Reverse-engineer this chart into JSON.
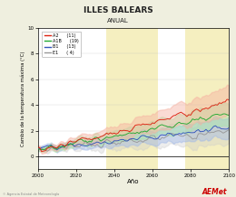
{
  "title": "ILLES BALEARS",
  "subtitle": "ANUAL",
  "xlabel": "Año",
  "ylabel": "Cambio de la temperatura máxima (°C)",
  "xlim": [
    2000,
    2100
  ],
  "ylim": [
    -1,
    10
  ],
  "yticks": [
    0,
    2,
    4,
    6,
    8,
    10
  ],
  "xticks": [
    2000,
    2020,
    2040,
    2060,
    2080,
    2100
  ],
  "bg_color": "#efefdf",
  "plot_bg": "#ffffff",
  "shade1_start": 2036,
  "shade1_end": 2063,
  "shade2_start": 2077,
  "shade2_end": 2100,
  "shade_color": "#f5efc0",
  "legend_labels": [
    "A2",
    "A1B",
    "B1",
    "E1"
  ],
  "legend_counts": [
    "(11)",
    "(19)",
    "(13)",
    "( 4)"
  ],
  "line_colors": [
    "#dd2211",
    "#22aa33",
    "#3355bb",
    "#999999"
  ],
  "band_alphas": [
    0.45,
    0.45,
    0.45,
    0.35
  ],
  "band_colors": [
    "#f5b0a0",
    "#a8e8a8",
    "#a0b8e8",
    "#cccccc"
  ]
}
